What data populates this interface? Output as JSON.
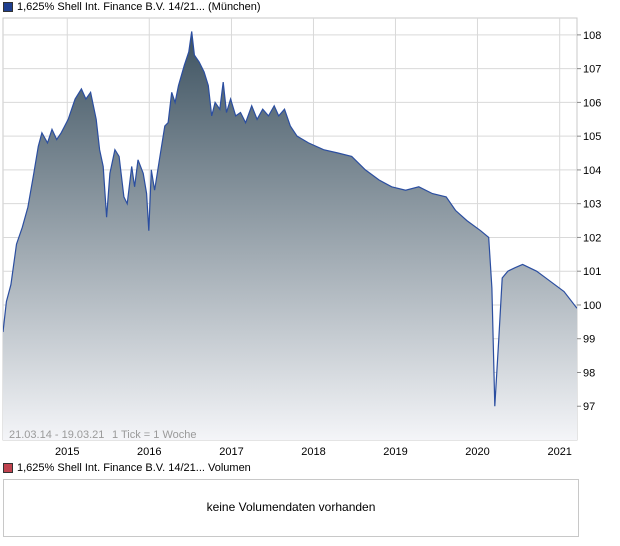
{
  "legend": {
    "price": "1,625% Shell Int. Finance B.V. 14/21... (München)",
    "volume": "1,625% Shell Int. Finance B.V. 14/21... Volumen"
  },
  "footer": {
    "range": "21.03.14 - 19.03.21",
    "tick": "1 Tick = 1 Woche"
  },
  "volume_panel": {
    "message": "keine Volumendaten vorhanden"
  },
  "colors": {
    "line": "#2b4ea0",
    "fill_top": "#3d5260",
    "fill_bottom": "#f4f5f8",
    "grid": "#d9d9d9"
  },
  "chart_data": {
    "type": "area",
    "title": "1,625% Shell Int. Finance B.V. 14/21... (München)",
    "xlabel": "",
    "ylabel": "",
    "x_ticks": [
      "2015",
      "2016",
      "2017",
      "2018",
      "2019",
      "2020",
      "2021"
    ],
    "y_ticks": [
      97,
      98,
      99,
      100,
      101,
      102,
      103,
      104,
      105,
      106,
      107,
      108
    ],
    "xlim": [
      "2014-03-21",
      "2021-03-19"
    ],
    "ylim": [
      96.0,
      108.5
    ],
    "grid": true,
    "series": [
      {
        "name": "1,625% Shell Int. Finance B.V. 14/21... (München)",
        "points": [
          [
            "2014-03-21",
            99.2
          ],
          [
            "2014-04-05",
            100.1
          ],
          [
            "2014-04-25",
            100.6
          ],
          [
            "2014-05-20",
            101.8
          ],
          [
            "2014-06-15",
            102.3
          ],
          [
            "2014-07-10",
            102.9
          ],
          [
            "2014-08-05",
            103.9
          ],
          [
            "2014-08-25",
            104.7
          ],
          [
            "2014-09-10",
            105.1
          ],
          [
            "2014-10-05",
            104.8
          ],
          [
            "2014-10-25",
            105.2
          ],
          [
            "2014-11-15",
            104.9
          ],
          [
            "2014-12-05",
            105.1
          ],
          [
            "2015-01-05",
            105.5
          ],
          [
            "2015-02-05",
            106.1
          ],
          [
            "2015-03-05",
            106.4
          ],
          [
            "2015-03-25",
            106.1
          ],
          [
            "2015-04-15",
            106.3
          ],
          [
            "2015-05-10",
            105.5
          ],
          [
            "2015-05-25",
            104.6
          ],
          [
            "2015-06-10",
            104.1
          ],
          [
            "2015-06-25",
            102.6
          ],
          [
            "2015-07-10",
            103.9
          ],
          [
            "2015-08-01",
            104.6
          ],
          [
            "2015-08-20",
            104.4
          ],
          [
            "2015-09-10",
            103.2
          ],
          [
            "2015-09-25",
            103.0
          ],
          [
            "2015-10-15",
            104.1
          ],
          [
            "2015-10-28",
            103.5
          ],
          [
            "2015-11-12",
            104.3
          ],
          [
            "2015-12-05",
            103.9
          ],
          [
            "2015-12-20",
            103.3
          ],
          [
            "2015-12-30",
            102.2
          ],
          [
            "2016-01-10",
            104.0
          ],
          [
            "2016-01-25",
            103.4
          ],
          [
            "2016-02-15",
            104.3
          ],
          [
            "2016-03-10",
            105.3
          ],
          [
            "2016-03-25",
            105.4
          ],
          [
            "2016-04-10",
            106.3
          ],
          [
            "2016-04-25",
            106.0
          ],
          [
            "2016-05-10",
            106.5
          ],
          [
            "2016-06-05",
            107.1
          ],
          [
            "2016-06-25",
            107.5
          ],
          [
            "2016-07-08",
            108.1
          ],
          [
            "2016-07-20",
            107.4
          ],
          [
            "2016-08-10",
            107.2
          ],
          [
            "2016-09-01",
            106.9
          ],
          [
            "2016-09-20",
            106.5
          ],
          [
            "2016-10-05",
            105.6
          ],
          [
            "2016-10-20",
            106.0
          ],
          [
            "2016-11-10",
            105.8
          ],
          [
            "2016-11-25",
            106.6
          ],
          [
            "2016-12-10",
            105.7
          ],
          [
            "2016-12-28",
            106.1
          ],
          [
            "2017-01-20",
            105.6
          ],
          [
            "2017-02-10",
            105.7
          ],
          [
            "2017-03-05",
            105.4
          ],
          [
            "2017-04-01",
            105.9
          ],
          [
            "2017-04-25",
            105.5
          ],
          [
            "2017-05-20",
            105.8
          ],
          [
            "2017-06-15",
            105.6
          ],
          [
            "2017-07-10",
            105.9
          ],
          [
            "2017-07-30",
            105.6
          ],
          [
            "2017-08-25",
            105.8
          ],
          [
            "2017-09-20",
            105.3
          ],
          [
            "2017-10-20",
            105.0
          ],
          [
            "2017-12-10",
            104.8
          ],
          [
            "2018-02-15",
            104.6
          ],
          [
            "2018-04-20",
            104.5
          ],
          [
            "2018-06-20",
            104.4
          ],
          [
            "2018-08-20",
            104.0
          ],
          [
            "2018-10-20",
            103.7
          ],
          [
            "2018-12-15",
            103.5
          ],
          [
            "2019-02-15",
            103.4
          ],
          [
            "2019-04-15",
            103.5
          ],
          [
            "2019-06-15",
            103.3
          ],
          [
            "2019-08-15",
            103.2
          ],
          [
            "2019-09-25",
            102.8
          ],
          [
            "2019-11-15",
            102.5
          ],
          [
            "2020-01-15",
            102.2
          ],
          [
            "2020-02-20",
            102.0
          ],
          [
            "2020-03-05",
            100.5
          ],
          [
            "2020-03-18",
            97.0
          ],
          [
            "2020-04-05",
            99.0
          ],
          [
            "2020-04-20",
            100.8
          ],
          [
            "2020-05-15",
            101.0
          ],
          [
            "2020-06-15",
            101.1
          ],
          [
            "2020-07-20",
            101.2
          ],
          [
            "2020-09-20",
            101.0
          ],
          [
            "2020-11-20",
            100.7
          ],
          [
            "2021-01-20",
            100.4
          ],
          [
            "2021-03-19",
            99.9
          ]
        ]
      }
    ]
  }
}
